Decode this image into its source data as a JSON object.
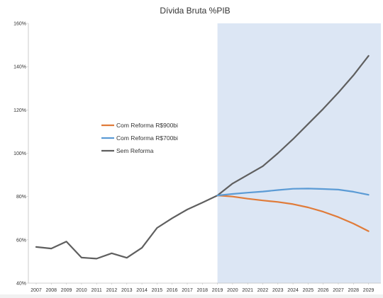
{
  "chart_data": {
    "type": "line",
    "title": "Dívida Bruta %PIB",
    "xlabel": "",
    "ylabel": "",
    "x": [
      2007,
      2008,
      2009,
      2010,
      2011,
      2012,
      2013,
      2014,
      2015,
      2016,
      2017,
      2018,
      2019,
      2020,
      2021,
      2022,
      2023,
      2024,
      2025,
      2026,
      2027,
      2028,
      2029
    ],
    "x_tick_labels": [
      "2007",
      "2008",
      "2009",
      "2010",
      "2011",
      "2012",
      "2013",
      "2014",
      "2015",
      "2016",
      "2017",
      "2018",
      "2019",
      "2020",
      "2021",
      "2022",
      "2023",
      "2024",
      "2025",
      "2026",
      "2027",
      "2028",
      "2029"
    ],
    "y_tick_values": [
      40,
      60,
      80,
      100,
      120,
      140,
      160
    ],
    "y_tick_labels": [
      "40%",
      "60%",
      "80%",
      "100%",
      "120%",
      "140%",
      "160%"
    ],
    "ylim": [
      40,
      160
    ],
    "grid": false,
    "legend_position": "middle-left",
    "shaded_region": {
      "from": 2019,
      "to": 2029.5,
      "color": "#dce6f4"
    },
    "series": [
      {
        "name": "Com Reforma R$900bi",
        "color": "#e07b39",
        "x": [
          2019,
          2020,
          2021,
          2022,
          2023,
          2024,
          2025,
          2026,
          2027,
          2028,
          2029
        ],
        "values": [
          80.5,
          80.0,
          79.0,
          78.2,
          77.5,
          76.5,
          75.0,
          73.0,
          70.5,
          67.5,
          64.0
        ]
      },
      {
        "name": "Com Reforma R$700bi",
        "color": "#5b9bd5",
        "x": [
          2019,
          2020,
          2021,
          2022,
          2023,
          2024,
          2025,
          2026,
          2027,
          2028,
          2029
        ],
        "values": [
          80.5,
          81.2,
          81.8,
          82.3,
          83.0,
          83.6,
          83.7,
          83.5,
          83.2,
          82.2,
          80.8
        ]
      },
      {
        "name": "Sem Reforma",
        "color": "#5f5f5f",
        "x": [
          2007,
          2008,
          2009,
          2010,
          2011,
          2012,
          2013,
          2014,
          2015,
          2016,
          2017,
          2018,
          2019,
          2020,
          2021,
          2022,
          2023,
          2024,
          2025,
          2026,
          2027,
          2028,
          2029
        ],
        "values": [
          56.7,
          56.0,
          59.2,
          51.8,
          51.3,
          53.8,
          51.7,
          56.3,
          65.5,
          70.0,
          74.0,
          77.2,
          80.5,
          86.0,
          90.0,
          94.0,
          100.0,
          106.5,
          113.5,
          120.5,
          128.0,
          136.0,
          145.0
        ]
      }
    ]
  }
}
